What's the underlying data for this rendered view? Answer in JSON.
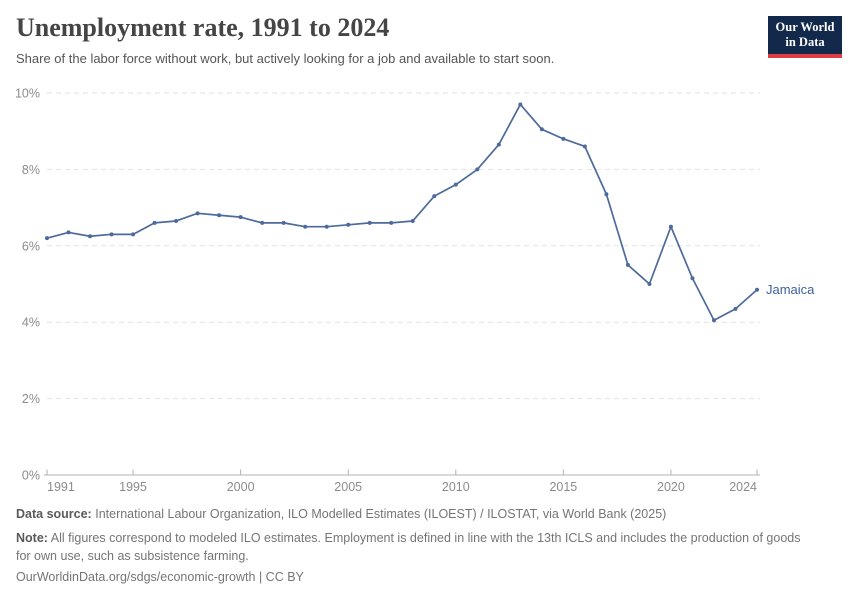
{
  "header": {
    "title": "Unemployment rate, 1991 to 2024",
    "subtitle": "Share of the labor force without work, but actively looking for a job and available to start soon.",
    "logo": {
      "line1": "Our World",
      "line2": "in Data",
      "bg_color": "#12294b",
      "stripe_color": "#dc3f42"
    }
  },
  "chart_data": {
    "type": "line",
    "title": "Unemployment rate, 1991 to 2024",
    "xlabel": "",
    "ylabel": "",
    "xlim": [
      1991,
      2024
    ],
    "ylim": [
      0,
      10
    ],
    "x_ticks": [
      1991,
      1995,
      2000,
      2005,
      2010,
      2015,
      2020,
      2024
    ],
    "y_ticks": [
      0,
      2,
      4,
      6,
      8,
      10
    ],
    "y_tick_suffix": "%",
    "grid": "horizontal-dashed",
    "legend_position": "end-of-line-label",
    "x": [
      1991,
      1992,
      1993,
      1994,
      1995,
      1996,
      1997,
      1998,
      1999,
      2000,
      2001,
      2002,
      2003,
      2004,
      2005,
      2006,
      2007,
      2008,
      2009,
      2010,
      2011,
      2012,
      2013,
      2014,
      2015,
      2016,
      2017,
      2018,
      2019,
      2020,
      2021,
      2022,
      2023,
      2024
    ],
    "series": [
      {
        "name": "Jamaica",
        "color": "#4c6a9c",
        "label_color": "#3d619e",
        "values": [
          6.2,
          6.35,
          6.25,
          6.3,
          6.3,
          6.6,
          6.65,
          6.85,
          6.8,
          6.75,
          6.6,
          6.6,
          6.5,
          6.5,
          6.55,
          6.6,
          6.6,
          6.65,
          7.3,
          7.6,
          8.0,
          8.65,
          9.7,
          9.05,
          8.8,
          8.6,
          7.35,
          5.5,
          5.0,
          6.5,
          5.15,
          4.05,
          4.35,
          4.85
        ]
      }
    ]
  },
  "footer": {
    "data_source_label": "Data source:",
    "data_source_text": "International Labour Organization, ILO Modelled Estimates (ILOEST) / ILOSTAT, via World Bank (2025)",
    "note_label": "Note:",
    "note_text": "All figures correspond to modeled ILO estimates. Employment is defined in line with the 13th ICLS and includes the production of goods for own use, such as subsistence farming.",
    "url": "OurWorldinData.org/sdgs/economic-growth",
    "separator": "|",
    "license": "CC BY"
  }
}
